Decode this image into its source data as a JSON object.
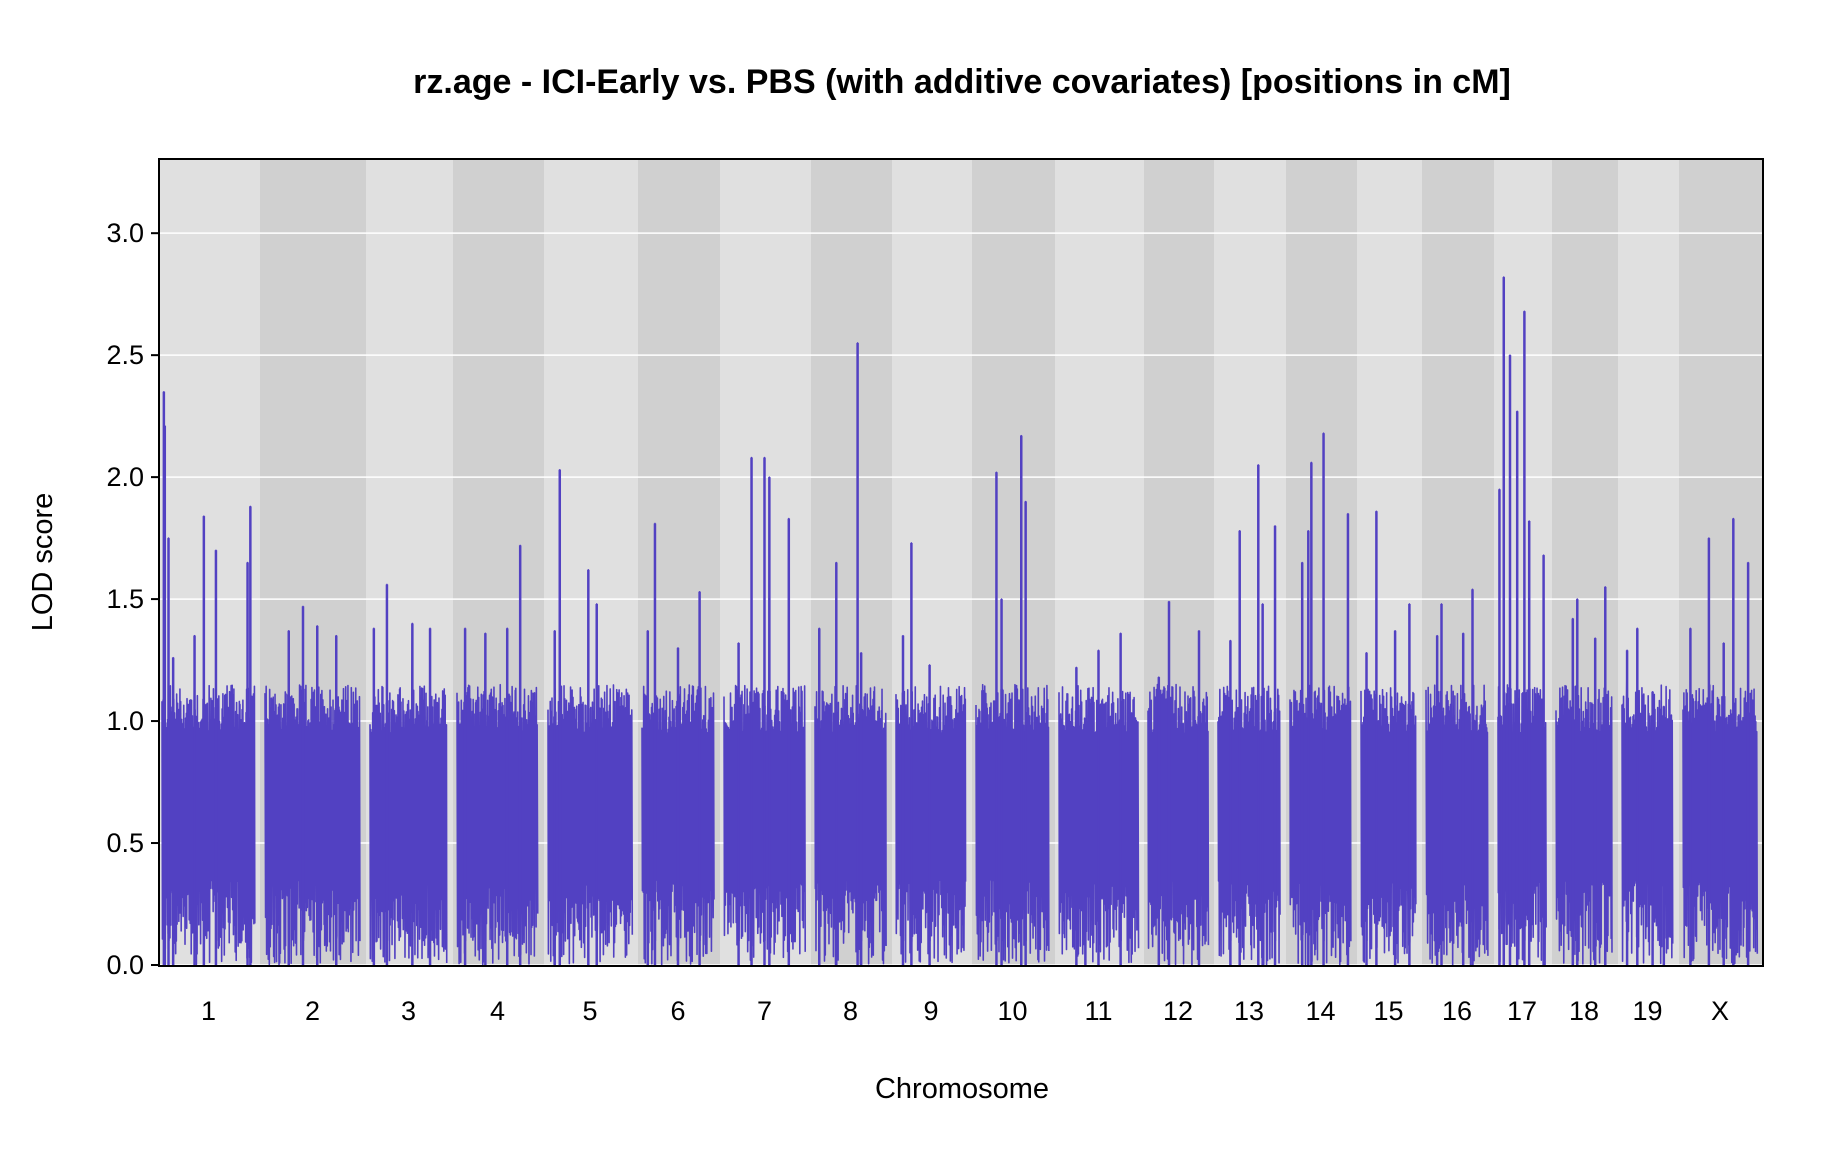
{
  "chart_data": {
    "type": "line",
    "title": "rz.age - ICI-Early vs. PBS (with additive covariates) [positions in cM]",
    "xlabel": "Chromosome",
    "ylabel": "LOD score",
    "ylim": [
      0,
      3.3
    ],
    "yticks": [
      "0.0",
      "0.5",
      "1.0",
      "1.5",
      "2.0",
      "2.5",
      "3.0"
    ],
    "grid": true,
    "colors": {
      "line": "#5241c2",
      "band_light": "#e0e0e0",
      "band_dark": "#d0d0d0",
      "grid": "#ffffff"
    },
    "categories": [
      "1",
      "2",
      "3",
      "4",
      "5",
      "6",
      "7",
      "8",
      "9",
      "10",
      "11",
      "12",
      "13",
      "14",
      "15",
      "16",
      "17",
      "18",
      "19",
      "X"
    ],
    "series": [
      {
        "chromosomes": [
          {
            "chr": "1",
            "peaks": [
              [
                0.02,
                2.35
              ],
              [
                0.03,
                2.21
              ],
              [
                0.07,
                1.75
              ],
              [
                0.12,
                1.26
              ],
              [
                0.35,
                1.35
              ],
              [
                0.45,
                1.84
              ],
              [
                0.58,
                1.7
              ],
              [
                0.95,
                1.88
              ],
              [
                0.92,
                1.65
              ]
            ]
          },
          {
            "chr": "2",
            "peaks": [
              [
                0.25,
                1.37
              ],
              [
                0.4,
                1.47
              ],
              [
                0.55,
                1.39
              ],
              [
                0.75,
                1.35
              ]
            ]
          },
          {
            "chr": "3",
            "peaks": [
              [
                0.05,
                1.38
              ],
              [
                0.22,
                1.56
              ],
              [
                0.55,
                1.4
              ],
              [
                0.78,
                1.38
              ]
            ]
          },
          {
            "chr": "4",
            "peaks": [
              [
                0.1,
                1.38
              ],
              [
                0.35,
                1.36
              ],
              [
                0.62,
                1.38
              ],
              [
                0.78,
                1.72
              ]
            ]
          },
          {
            "chr": "5",
            "peaks": [
              [
                0.08,
                1.37
              ],
              [
                0.14,
                2.03
              ],
              [
                0.48,
                1.62
              ],
              [
                0.58,
                1.48
              ]
            ]
          },
          {
            "chr": "6",
            "peaks": [
              [
                0.08,
                1.37
              ],
              [
                0.18,
                1.81
              ],
              [
                0.5,
                1.3
              ],
              [
                0.8,
                1.53
              ]
            ]
          },
          {
            "chr": "7",
            "peaks": [
              [
                0.18,
                1.32
              ],
              [
                0.34,
                2.08
              ],
              [
                0.5,
                2.08
              ],
              [
                0.56,
                2.0
              ],
              [
                0.8,
                1.83
              ]
            ]
          },
          {
            "chr": "8",
            "peaks": [
              [
                0.06,
                1.38
              ],
              [
                0.3,
                1.65
              ],
              [
                0.6,
                2.55
              ],
              [
                0.65,
                1.28
              ]
            ]
          },
          {
            "chr": "9",
            "peaks": [
              [
                0.1,
                1.35
              ],
              [
                0.22,
                1.73
              ],
              [
                0.48,
                1.23
              ]
            ]
          },
          {
            "chr": "10",
            "peaks": [
              [
                0.28,
                2.02
              ],
              [
                0.35,
                1.5
              ],
              [
                0.62,
                2.17
              ],
              [
                0.68,
                1.9
              ]
            ]
          },
          {
            "chr": "11",
            "peaks": [
              [
                0.22,
                1.22
              ],
              [
                0.5,
                1.29
              ],
              [
                0.78,
                1.36
              ]
            ]
          },
          {
            "chr": "12",
            "peaks": [
              [
                0.18,
                1.18
              ],
              [
                0.35,
                1.49
              ],
              [
                0.85,
                1.37
              ]
            ]
          },
          {
            "chr": "13",
            "peaks": [
              [
                0.2,
                1.33
              ],
              [
                0.35,
                1.78
              ],
              [
                0.65,
                2.05
              ],
              [
                0.72,
                1.48
              ],
              [
                0.92,
                1.8
              ]
            ]
          },
          {
            "chr": "14",
            "peaks": [
              [
                0.2,
                1.65
              ],
              [
                0.3,
                1.78
              ],
              [
                0.35,
                2.06
              ],
              [
                0.55,
                2.18
              ],
              [
                0.95,
                1.85
              ]
            ]
          },
          {
            "chr": "15",
            "peaks": [
              [
                0.1,
                1.28
              ],
              [
                0.28,
                1.86
              ],
              [
                0.62,
                1.37
              ],
              [
                0.88,
                1.48
              ]
            ]
          },
          {
            "chr": "16",
            "peaks": [
              [
                0.18,
                1.35
              ],
              [
                0.25,
                1.48
              ],
              [
                0.6,
                1.36
              ],
              [
                0.75,
                1.54
              ]
            ]
          },
          {
            "chr": "17",
            "peaks": [
              [
                0.03,
                1.95
              ],
              [
                0.12,
                2.82
              ],
              [
                0.25,
                2.5
              ],
              [
                0.4,
                2.27
              ],
              [
                0.55,
                2.68
              ],
              [
                0.65,
                1.82
              ],
              [
                0.95,
                1.68
              ]
            ]
          },
          {
            "chr": "18",
            "peaks": [
              [
                0.3,
                1.42
              ],
              [
                0.38,
                1.5
              ],
              [
                0.7,
                1.34
              ],
              [
                0.88,
                1.55
              ]
            ]
          },
          {
            "chr": "19",
            "peaks": [
              [
                0.1,
                1.29
              ],
              [
                0.3,
                1.38
              ],
              [
                0.6,
                1.12
              ],
              [
                0.82,
                1.06
              ]
            ]
          },
          {
            "chr": "X",
            "peaks": [
              [
                0.1,
                1.38
              ],
              [
                0.35,
                1.75
              ],
              [
                0.55,
                1.32
              ],
              [
                0.68,
                1.83
              ],
              [
                0.88,
                1.65
              ]
            ]
          }
        ]
      }
    ]
  }
}
